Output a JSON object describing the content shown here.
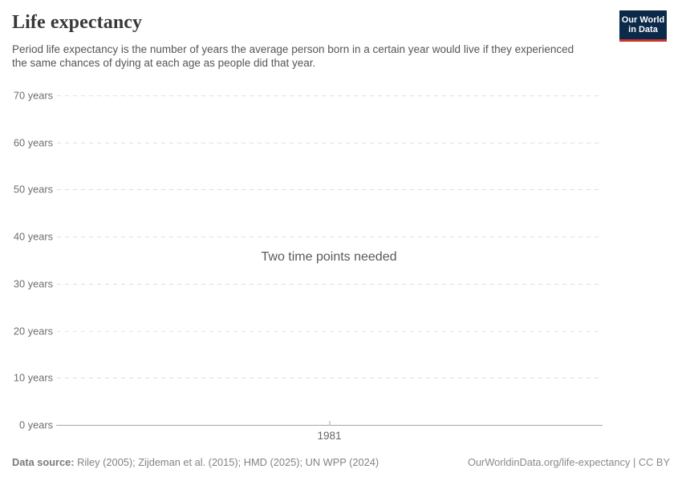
{
  "header": {
    "title": "Life expectancy",
    "subtitle": "Period life expectancy is the number of years the average person born in a certain year would live if they experienced the same chances of dying at each age as people did that year.",
    "logo": {
      "line1": "Our World",
      "line2": "in Data",
      "bg_color": "#0b2948",
      "accent_color": "#cd332a"
    }
  },
  "chart_data": {
    "type": "line",
    "title": "Life expectancy",
    "series": [],
    "empty_message": "Two time points needed",
    "x_ticks": [
      1981
    ],
    "y_ticks": [
      0,
      10,
      20,
      30,
      40,
      50,
      60,
      70
    ],
    "y_tick_suffix": " years",
    "ylim": [
      0,
      70
    ],
    "grid": true,
    "legend_position": "none",
    "colors": {
      "gridline": "#e0e0e0",
      "axis_line": "#a6a6a6",
      "tick_label": "#6e6e6e"
    }
  },
  "footer": {
    "data_source_label": "Data source:",
    "data_source_value": "Riley (2005); Zijdeman et al. (2015); HMD (2025); UN WPP (2024)",
    "attribution": "OurWorldinData.org/life-expectancy | CC BY"
  }
}
